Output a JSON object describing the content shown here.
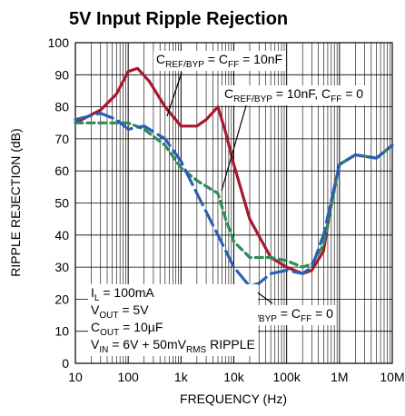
{
  "chart_data": {
    "type": "line",
    "title": "5V Input Ripple Rejection",
    "x_label": "FREQUENCY (Hz)",
    "y_label": "RIPPLE REJECTION (dB)",
    "log_x": true,
    "grid": true,
    "xlim": [
      10,
      10000000
    ],
    "ylim": [
      0,
      100
    ],
    "xticks": [
      10,
      100,
      {
        "value": 1000,
        "label": "1k"
      },
      {
        "value": 10000,
        "label": "10k"
      },
      {
        "value": 100000,
        "label": "100k"
      },
      {
        "value": 1000000,
        "label": "1M"
      },
      {
        "value": 10000000,
        "label": "10M"
      }
    ],
    "xminorticks": [
      20,
      30,
      40,
      50,
      60,
      70,
      80,
      90,
      200,
      300,
      400,
      500,
      600,
      700,
      800,
      900,
      2000,
      3000,
      4000,
      5000,
      6000,
      7000,
      8000,
      9000,
      20000,
      30000,
      40000,
      50000,
      60000,
      70000,
      80000,
      90000,
      200000,
      300000,
      400000,
      500000,
      600000,
      700000,
      800000,
      900000,
      2000000,
      3000000,
      4000000,
      5000000,
      6000000,
      7000000,
      8000000,
      9000000
    ],
    "yticks": [
      0,
      10,
      20,
      30,
      40,
      50,
      60,
      70,
      80,
      90,
      100
    ],
    "series": [
      {
        "color": "#a6192e",
        "dash": "none",
        "x": [
          10,
          30,
          60,
          100,
          150,
          250,
          500,
          1000,
          2000,
          3000,
          5000,
          7000,
          10000,
          20000,
          50000,
          100000,
          200000,
          300000,
          500000,
          700000,
          1000000,
          2000000,
          5000000,
          10000000
        ],
        "values": [
          75,
          79,
          84,
          91,
          92,
          88,
          80,
          74,
          74,
          76,
          80,
          72,
          62,
          45,
          33,
          30,
          28,
          29,
          35,
          50,
          62,
          65,
          64,
          68
        ]
      },
      {
        "color": "#2e8b57",
        "dash": "8 5",
        "x": [
          10,
          50,
          100,
          200,
          500,
          1000,
          2000,
          5000,
          7000,
          10000,
          20000,
          50000,
          100000,
          200000,
          300000,
          500000,
          1000000,
          2000000,
          5000000,
          10000000
        ],
        "values": [
          75,
          75,
          75,
          73,
          68,
          61,
          57,
          53,
          45,
          38,
          33,
          33,
          32,
          30,
          31,
          37,
          62,
          65,
          64,
          68
        ]
      },
      {
        "color": "#2b5fb4",
        "dash": "18 7",
        "x": [
          10,
          30,
          60,
          100,
          200,
          500,
          1000,
          2000,
          5000,
          10000,
          20000,
          30000,
          50000,
          100000,
          200000,
          300000,
          500000,
          1000000,
          2000000,
          5000000,
          10000000
        ],
        "values": [
          76,
          78,
          76,
          73,
          74,
          70,
          63,
          53,
          40,
          30,
          24,
          25,
          28,
          29,
          28,
          30,
          40,
          62,
          65,
          64,
          68
        ]
      }
    ],
    "annotations": [
      {
        "parts": [
          {
            "text": "C"
          },
          {
            "text": "REF/BYP",
            "sub": true
          },
          {
            "text": " = C"
          },
          {
            "text": "FF",
            "sub": true
          },
          {
            "text": " = 10nF"
          }
        ]
      },
      {
        "parts": [
          {
            "text": "C"
          },
          {
            "text": "REF/BYP",
            "sub": true
          },
          {
            "text": " = 10nF, C"
          },
          {
            "text": "FF",
            "sub": true
          },
          {
            "text": " = 0"
          }
        ]
      },
      {
        "parts": [
          {
            "text": "C"
          },
          {
            "text": "REF/BYP",
            "sub": true
          },
          {
            "text": " = C"
          },
          {
            "text": "FF",
            "sub": true
          },
          {
            "text": " = 0"
          }
        ]
      }
    ],
    "conditions": [
      [
        {
          "text": "I"
        },
        {
          "text": "L",
          "sub": true
        },
        {
          "text": " = 100mA"
        }
      ],
      [
        {
          "text": "V"
        },
        {
          "text": "OUT",
          "sub": true
        },
        {
          "text": " = 5V"
        }
      ],
      [
        {
          "text": "C"
        },
        {
          "text": "OUT",
          "sub": true
        },
        {
          "text": " = 10µF"
        }
      ],
      [
        {
          "text": "V"
        },
        {
          "text": "IN",
          "sub": true
        },
        {
          "text": " = 6V + 50mV"
        },
        {
          "text": "RMS",
          "sub": true
        },
        {
          "text": " RIPPLE"
        }
      ]
    ]
  }
}
